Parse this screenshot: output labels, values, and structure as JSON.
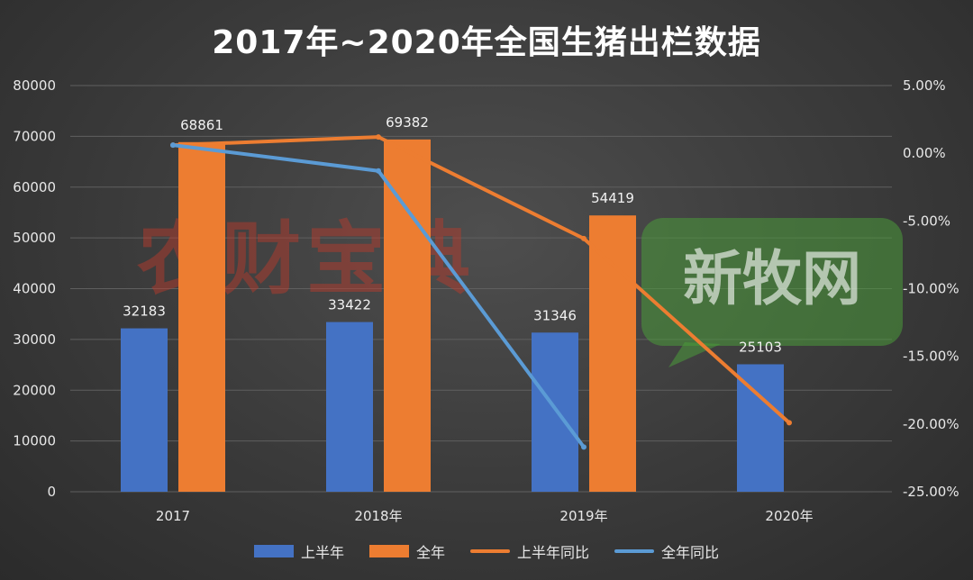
{
  "colors": {
    "half_year": "#4472c4",
    "full_year": "#ed7d31",
    "half_yoy": "#ed7d31",
    "full_yoy": "#5b9bd5",
    "grid": "#5f5f5f",
    "watermark_red": "#c0392b",
    "watermark_green": "#4a9a3a"
  },
  "watermarks": {
    "left": "农财宝典",
    "right": "新牧网"
  },
  "chart_data": {
    "type": "bar",
    "title": "2017年~2020年全国生猪出栏数据",
    "categories": [
      "2017",
      "2018年",
      "2019年",
      "2020年"
    ],
    "ylim": [
      0,
      80000
    ],
    "yticks": [
      0,
      10000,
      20000,
      30000,
      40000,
      50000,
      60000,
      70000,
      80000
    ],
    "y2lim": [
      -0.25,
      0.05
    ],
    "y2ticks": [
      "-25.00%",
      "-20.00%",
      "-15.00%",
      "-10.00%",
      "-5.00%",
      "0.00%",
      "5.00%"
    ],
    "y2tick_values": [
      -0.25,
      -0.2,
      -0.15,
      -0.1,
      -0.05,
      0.0,
      0.05
    ],
    "grid": true,
    "legend_position": "bottom",
    "bar_series": [
      {
        "name": "上半年",
        "values": [
          32183,
          33422,
          31346,
          25103
        ],
        "labels": [
          "32183",
          "33422",
          "31346",
          "25103"
        ]
      },
      {
        "name": "全年",
        "values": [
          68861,
          69382,
          54419,
          null
        ],
        "labels": [
          "68861",
          "69382",
          "54419",
          ""
        ]
      }
    ],
    "line_series": [
      {
        "name": "上半年同比",
        "axis": "secondary",
        "values": [
          0.006,
          0.012,
          -0.063,
          -0.199
        ]
      },
      {
        "name": "全年同比",
        "axis": "secondary",
        "values": [
          0.006,
          -0.013,
          -0.217,
          null
        ]
      }
    ]
  }
}
